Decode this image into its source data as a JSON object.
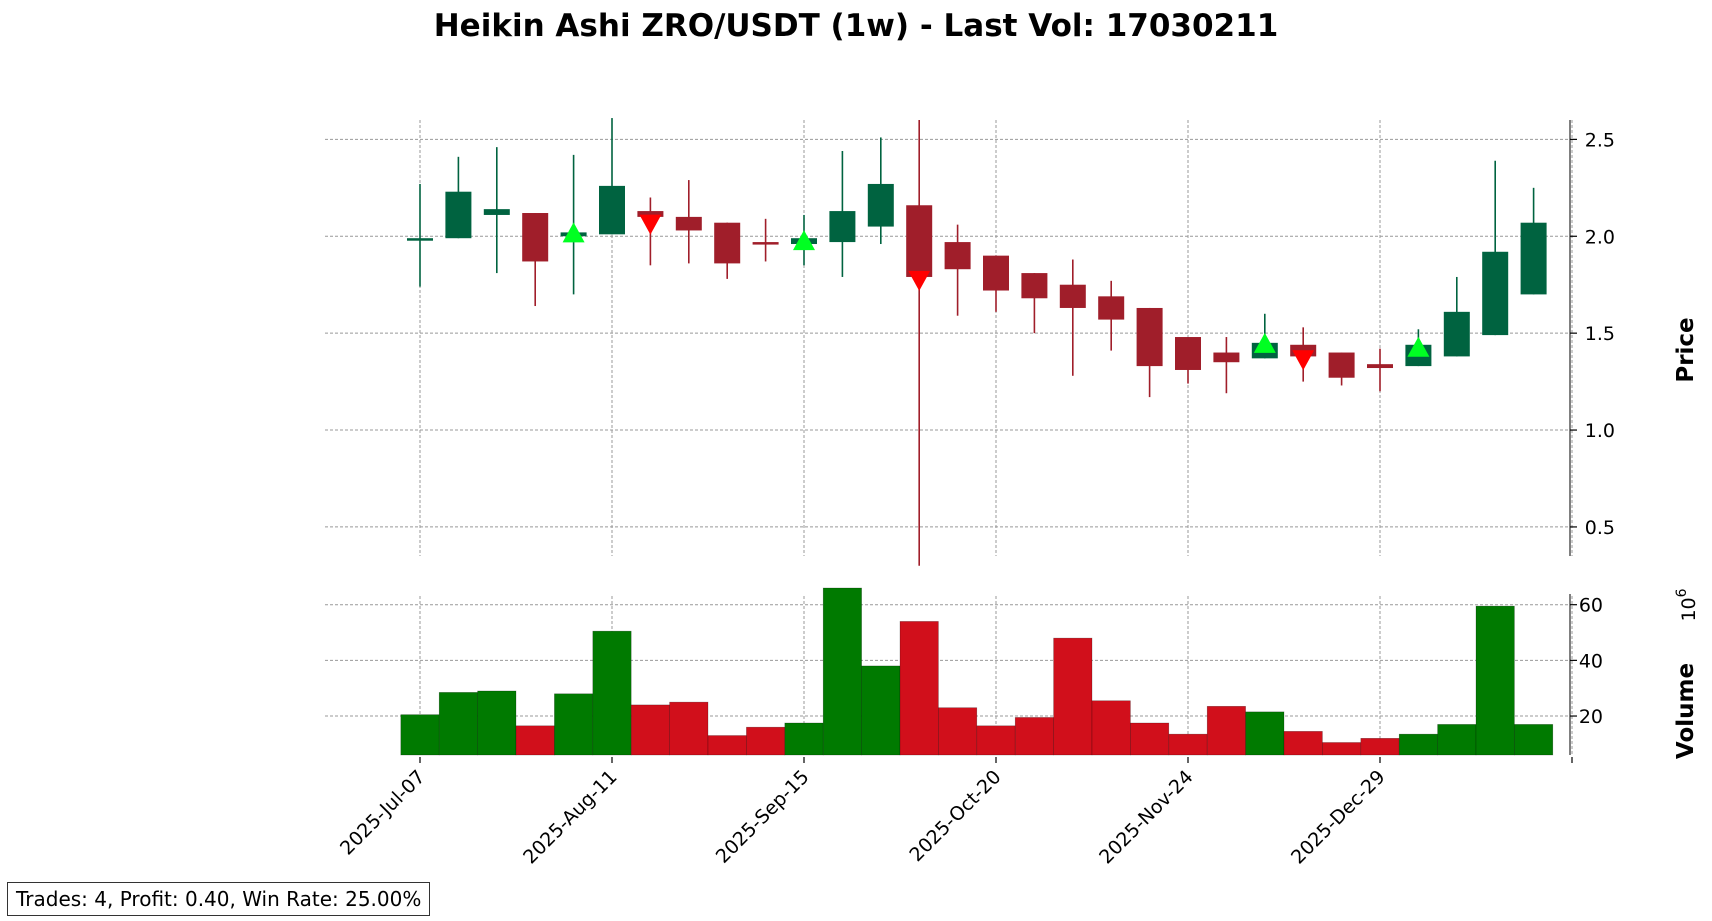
{
  "title": "Heikin Ashi ZRO/USDT (1w) - Last Vol: 17030211",
  "stats": "Trades: 4, Profit: 0.40, Win Rate: 25.00%",
  "colors": {
    "up_candle": "#006340",
    "down_candle": "#a01e2a",
    "up_volume": "#007a00",
    "down_volume": "#d10f1b",
    "buy_marker": "#00ff22",
    "sell_marker": "#ff0000",
    "grid": "#999999"
  },
  "chart_data": {
    "type": "candlestick",
    "x_tick_labels": [
      "2025-Jul-07",
      "2025-Aug-11",
      "2025-Sep-15",
      "2025-Oct-20",
      "2025-Nov-24",
      "2025-Dec-29"
    ],
    "x_tick_candle_index": [
      0,
      5,
      10,
      15,
      20,
      25
    ],
    "price_axis": {
      "label": "Price",
      "ticks": [
        0.5,
        1.0,
        1.5,
        2.0,
        2.5
      ],
      "ylim": [
        0.35,
        2.6
      ],
      "position": "right"
    },
    "volume_axis": {
      "label": "Volume",
      "multiplier_label": "10",
      "multiplier_exp": "6",
      "ticks": [
        20,
        40,
        60
      ],
      "ylim": [
        6,
        66
      ],
      "position": "right"
    },
    "grid": true,
    "candles": [
      {
        "o": 1.98,
        "h": 2.27,
        "l": 1.74,
        "c": 1.99,
        "v": 20.5
      },
      {
        "o": 1.99,
        "h": 2.41,
        "l": 1.99,
        "c": 2.23,
        "v": 28.5
      },
      {
        "o": 2.11,
        "h": 2.46,
        "l": 1.81,
        "c": 2.14,
        "v": 29.0
      },
      {
        "o": 2.12,
        "h": 2.12,
        "l": 1.64,
        "c": 1.87,
        "v": 16.5
      },
      {
        "o": 2.0,
        "h": 2.42,
        "l": 1.7,
        "c": 2.02,
        "v": 28.0
      },
      {
        "o": 2.01,
        "h": 2.61,
        "l": 2.01,
        "c": 2.26,
        "v": 50.5
      },
      {
        "o": 2.13,
        "h": 2.2,
        "l": 1.85,
        "c": 2.1,
        "v": 24.0
      },
      {
        "o": 2.1,
        "h": 2.29,
        "l": 1.86,
        "c": 2.03,
        "v": 25.0
      },
      {
        "o": 2.07,
        "h": 2.07,
        "l": 1.78,
        "c": 1.86,
        "v": 13.0
      },
      {
        "o": 1.97,
        "h": 2.09,
        "l": 1.87,
        "c": 1.96,
        "v": 16.0
      },
      {
        "o": 1.96,
        "h": 2.11,
        "l": 1.85,
        "c": 1.99,
        "v": 17.5
      },
      {
        "o": 1.97,
        "h": 2.44,
        "l": 1.79,
        "c": 2.13,
        "v": 66.0
      },
      {
        "o": 2.05,
        "h": 2.51,
        "l": 1.96,
        "c": 2.27,
        "v": 38.0
      },
      {
        "o": 2.16,
        "h": 2.6,
        "l": 0.3,
        "c": 1.79,
        "v": 54.0
      },
      {
        "o": 1.97,
        "h": 2.06,
        "l": 1.59,
        "c": 1.83,
        "v": 23.0
      },
      {
        "o": 1.9,
        "h": 1.9,
        "l": 1.61,
        "c": 1.72,
        "v": 16.5
      },
      {
        "o": 1.81,
        "h": 1.81,
        "l": 1.5,
        "c": 1.68,
        "v": 19.5
      },
      {
        "o": 1.75,
        "h": 1.88,
        "l": 1.28,
        "c": 1.63,
        "v": 48.0
      },
      {
        "o": 1.69,
        "h": 1.77,
        "l": 1.41,
        "c": 1.57,
        "v": 25.5
      },
      {
        "o": 1.63,
        "h": 1.63,
        "l": 1.17,
        "c": 1.33,
        "v": 17.5
      },
      {
        "o": 1.48,
        "h": 1.48,
        "l": 1.24,
        "c": 1.31,
        "v": 13.5
      },
      {
        "o": 1.4,
        "h": 1.48,
        "l": 1.19,
        "c": 1.35,
        "v": 23.5
      },
      {
        "o": 1.37,
        "h": 1.6,
        "l": 1.37,
        "c": 1.45,
        "v": 21.5
      },
      {
        "o": 1.44,
        "h": 1.53,
        "l": 1.25,
        "c": 1.38,
        "v": 14.5
      },
      {
        "o": 1.4,
        "h": 1.4,
        "l": 1.23,
        "c": 1.27,
        "v": 10.5
      },
      {
        "o": 1.34,
        "h": 1.42,
        "l": 1.2,
        "c": 1.32,
        "v": 12.0
      },
      {
        "o": 1.33,
        "h": 1.52,
        "l": 1.33,
        "c": 1.44,
        "v": 13.5
      },
      {
        "o": 1.38,
        "h": 1.79,
        "l": 1.38,
        "c": 1.61,
        "v": 17.0
      },
      {
        "o": 1.49,
        "h": 2.39,
        "l": 1.49,
        "c": 1.92,
        "v": 59.5
      },
      {
        "o": 1.7,
        "h": 2.25,
        "l": 1.7,
        "c": 2.07,
        "v": 17.0
      }
    ],
    "signals": [
      {
        "type": "buy",
        "index": 4,
        "price": 2.02
      },
      {
        "type": "sell",
        "index": 6,
        "price": 2.06
      },
      {
        "type": "buy",
        "index": 10,
        "price": 1.98
      },
      {
        "type": "sell",
        "index": 13,
        "price": 1.77
      },
      {
        "type": "buy",
        "index": 22,
        "price": 1.45
      },
      {
        "type": "sell",
        "index": 23,
        "price": 1.36
      },
      {
        "type": "buy",
        "index": 26,
        "price": 1.43
      }
    ]
  }
}
